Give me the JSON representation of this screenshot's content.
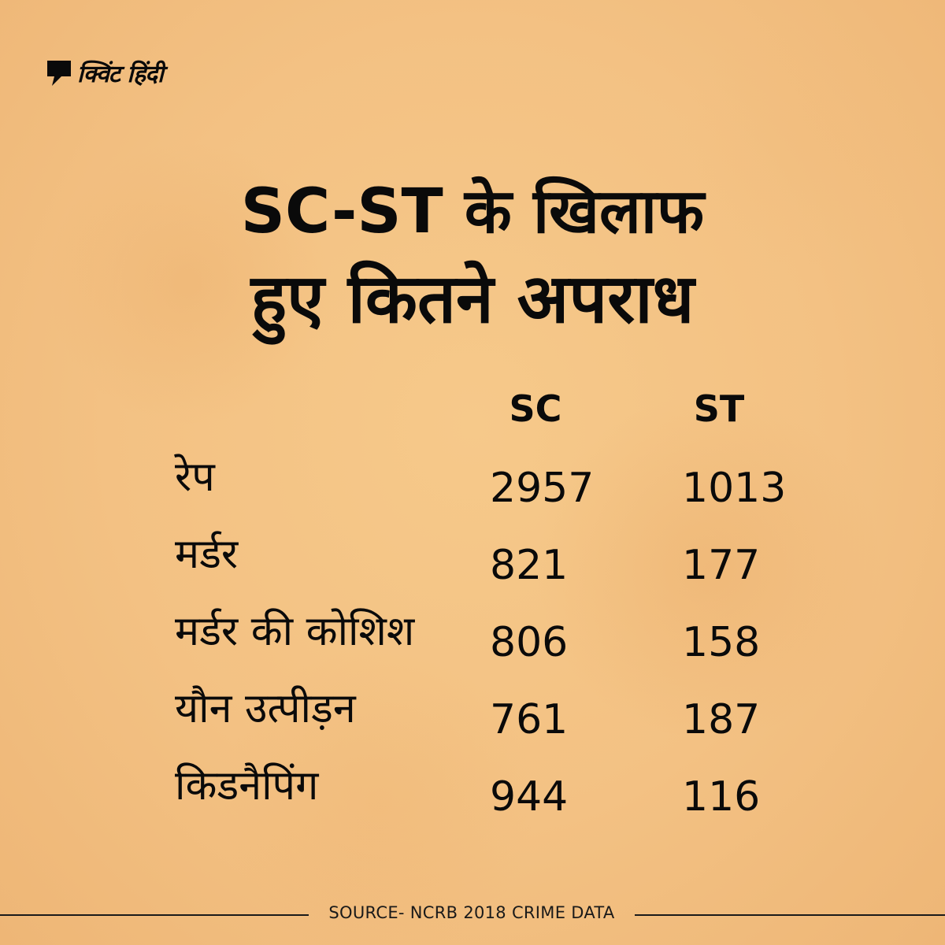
{
  "brand": {
    "name": "क्विंट हिंदी",
    "logo_icon": "quint-speech-mark-icon"
  },
  "title": {
    "line1": "SC-ST के खिलाफ",
    "line2": "हुए कितने अपराध"
  },
  "footer": {
    "source": "SOURCE- NCRB 2018 CRIME DATA"
  },
  "chart_data": {
    "type": "table",
    "columns": [
      "SC",
      "ST"
    ],
    "rows": [
      {
        "label": "रेप",
        "sc": "2957",
        "st": "1013"
      },
      {
        "label": "मर्डर",
        "sc": "821",
        "st": "177"
      },
      {
        "label": "मर्डर की कोशिश",
        "sc": "806",
        "st": "158"
      },
      {
        "label": "यौन उत्पीड़न",
        "sc": "761",
        "st": "187"
      },
      {
        "label": "किडनैपिंग",
        "sc": "944",
        "st": "116"
      }
    ]
  }
}
